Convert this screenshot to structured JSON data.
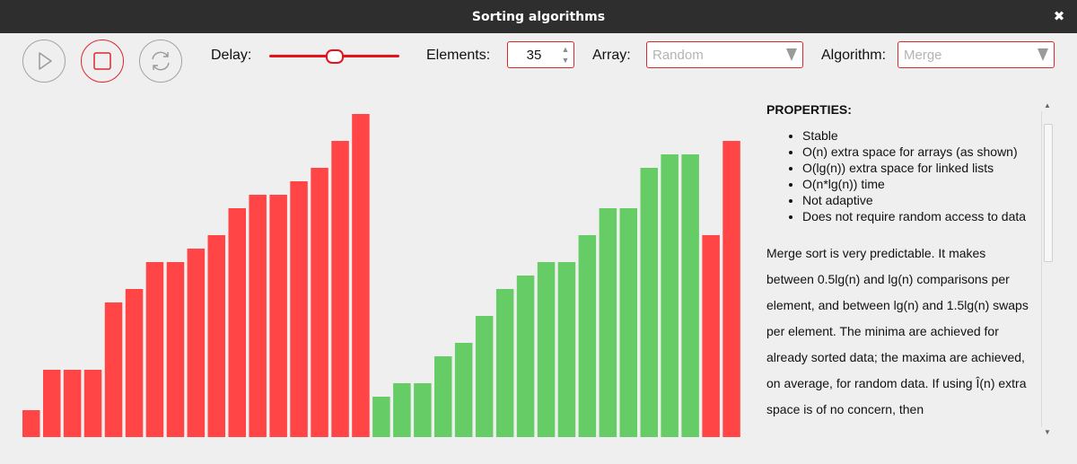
{
  "window": {
    "title": "Sorting algorithms",
    "close_glyph": "✖"
  },
  "toolbar": {
    "play_icon": "play-icon",
    "stop_icon": "stop-icon",
    "reset_icon": "refresh-icon",
    "delay_label": "Delay:",
    "delay_level_fraction": 0.5,
    "elements_label": "Elements:",
    "elements_value": "35",
    "array_label": "Array:",
    "array_selected": "Random",
    "algorithm_label": "Algorithm:",
    "algorithm_selected": "Merge"
  },
  "colors": {
    "accent": "#e8111a",
    "unsorted_bar": "#ff4545",
    "merged_bar": "#66cc66",
    "background": "#efefef"
  },
  "bars": [
    {
      "value": 2,
      "state": "unsorted"
    },
    {
      "value": 5,
      "state": "unsorted"
    },
    {
      "value": 5,
      "state": "unsorted"
    },
    {
      "value": 5,
      "state": "unsorted"
    },
    {
      "value": 10,
      "state": "unsorted"
    },
    {
      "value": 11,
      "state": "unsorted"
    },
    {
      "value": 13,
      "state": "unsorted"
    },
    {
      "value": 13,
      "state": "unsorted"
    },
    {
      "value": 14,
      "state": "unsorted"
    },
    {
      "value": 15,
      "state": "unsorted"
    },
    {
      "value": 17,
      "state": "unsorted"
    },
    {
      "value": 18,
      "state": "unsorted"
    },
    {
      "value": 18,
      "state": "unsorted"
    },
    {
      "value": 19,
      "state": "unsorted"
    },
    {
      "value": 20,
      "state": "unsorted"
    },
    {
      "value": 22,
      "state": "unsorted"
    },
    {
      "value": 24,
      "state": "unsorted"
    },
    {
      "value": 3,
      "state": "merged"
    },
    {
      "value": 4,
      "state": "merged"
    },
    {
      "value": 4,
      "state": "merged"
    },
    {
      "value": 6,
      "state": "merged"
    },
    {
      "value": 7,
      "state": "merged"
    },
    {
      "value": 9,
      "state": "merged"
    },
    {
      "value": 11,
      "state": "merged"
    },
    {
      "value": 12,
      "state": "merged"
    },
    {
      "value": 13,
      "state": "merged"
    },
    {
      "value": 13,
      "state": "merged"
    },
    {
      "value": 15,
      "state": "merged"
    },
    {
      "value": 17,
      "state": "merged"
    },
    {
      "value": 17,
      "state": "merged"
    },
    {
      "value": 20,
      "state": "merged"
    },
    {
      "value": 21,
      "state": "merged"
    },
    {
      "value": 21,
      "state": "merged"
    },
    {
      "value": 15,
      "state": "unsorted"
    },
    {
      "value": 22,
      "state": "unsorted"
    }
  ],
  "properties": {
    "heading": "PROPERTIES:",
    "items": [
      "Stable",
      "O(n) extra space for arrays (as shown)",
      "O(lg(n)) extra space for linked lists",
      "O(n*lg(n)) time",
      "Not adaptive",
      "Does not require random access to data"
    ],
    "description": "Merge sort is very predictable. It makes between 0.5lg(n) and lg(n) comparisons per element, and between lg(n) and 1.5lg(n) swaps per element. The minima are achieved for already sorted data; the maxima are achieved, on average, for random data. If using Î(n) extra space is of no concern, then"
  },
  "scrollbar": {
    "up_glyph": "▲",
    "down_glyph": "▼"
  },
  "spinner": {
    "up_glyph": "▲",
    "down_glyph": "▼"
  }
}
